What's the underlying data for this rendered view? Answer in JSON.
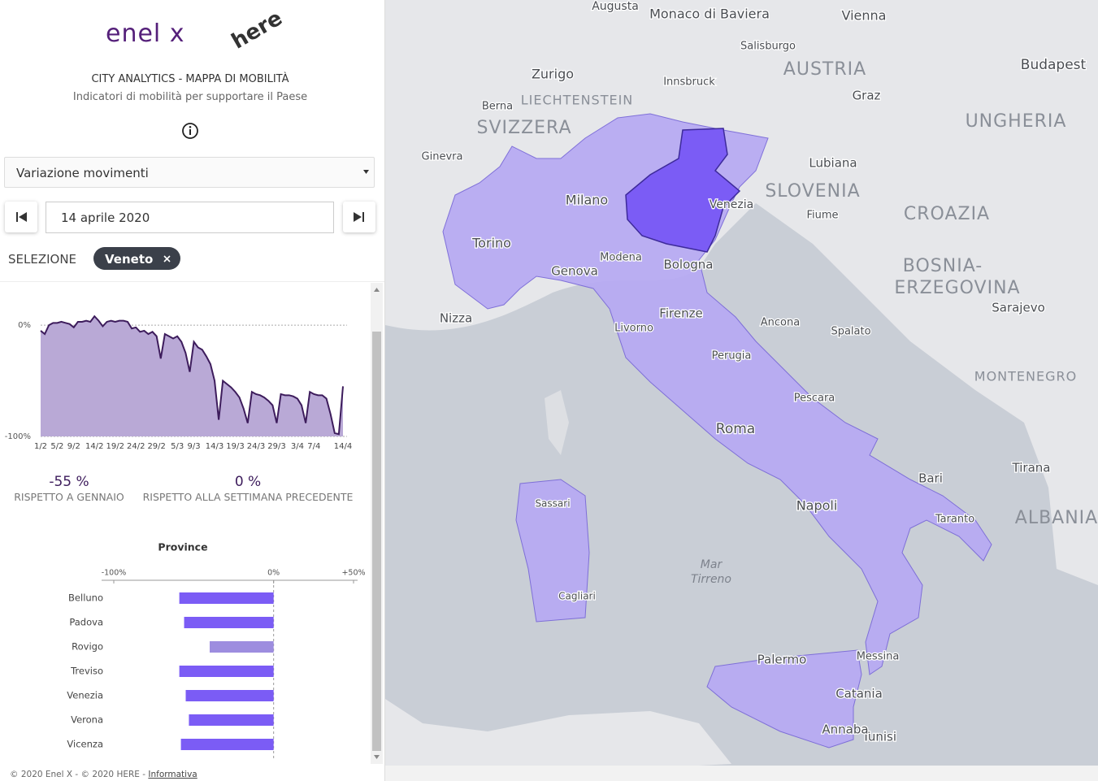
{
  "header": {
    "brand": "enel x",
    "partner": "here",
    "title": "CITY ANALYTICS - MAPPA DI MOBILITÀ",
    "subtitle": "Indicatori di mobilità per supportare il Paese"
  },
  "controls": {
    "indicator": "Variazione movimenti",
    "date": "14 aprile 2020",
    "selection_label": "SELEZIONE",
    "selection": "Veneto"
  },
  "stats": [
    {
      "value": "-55 %",
      "label": "RISPETTO A GENNAIO"
    },
    {
      "value": "0 %",
      "label": "RISPETTO ALLA SETTIMANA PRECEDENTE"
    }
  ],
  "chart_data": [
    {
      "type": "area",
      "color": "#b9a9d6",
      "line_color": "#3d1c5c",
      "categories": [
        "1/2",
        null,
        null,
        null,
        "5/2",
        null,
        null,
        null,
        "9/2",
        null,
        null,
        null,
        null,
        "14/2",
        null,
        null,
        null,
        null,
        "19/2",
        null,
        null,
        null,
        null,
        "24/2",
        null,
        null,
        null,
        null,
        "29/2",
        null,
        null,
        null,
        null,
        "5/3",
        null,
        null,
        null,
        "9/3",
        null,
        null,
        null,
        null,
        "14/3",
        null,
        null,
        null,
        null,
        "19/3",
        null,
        null,
        null,
        null,
        "24/3",
        null,
        null,
        null,
        null,
        "29/3",
        null,
        null,
        null,
        null,
        "3/4",
        null,
        null,
        null,
        "7/4",
        null,
        null,
        null,
        null,
        null,
        null,
        "14/4"
      ],
      "values": [
        -5,
        -8,
        0,
        2,
        2,
        3,
        2,
        1,
        -2,
        3,
        3,
        4,
        3,
        8,
        4,
        -1,
        3,
        4,
        3,
        4,
        4,
        3,
        -3,
        -2,
        -6,
        -5,
        -8,
        -6,
        -10,
        -30,
        -8,
        -10,
        -12,
        -10,
        -15,
        -25,
        -42,
        -15,
        -20,
        -22,
        -28,
        -35,
        -50,
        -85,
        -50,
        -53,
        -56,
        -60,
        -65,
        -75,
        -88,
        -60,
        -62,
        -63,
        -65,
        -68,
        -72,
        -88,
        -62,
        -63,
        -63,
        -64,
        -66,
        -72,
        -88,
        -60,
        -62,
        -63,
        -63,
        -66,
        -80,
        -97,
        -98,
        -55
      ],
      "ylim": [
        -100,
        30
      ],
      "yticks": [
        {
          "value": 0,
          "label": "0%"
        },
        {
          "value": -100,
          "label": "-100%"
        }
      ],
      "grid": true
    },
    {
      "type": "bar",
      "orientation": "horizontal",
      "title": "Province",
      "categories": [
        "Belluno",
        "Padova",
        "Rovigo",
        "Treviso",
        "Venezia",
        "Verona",
        "Vicenza"
      ],
      "values": [
        -59,
        -56,
        -40,
        -59,
        -55,
        -53,
        -58
      ],
      "colors": [
        "#7b5cf5",
        "#7b5cf5",
        "#9d8ddf",
        "#7b5cf5",
        "#7b5cf5",
        "#7b5cf5",
        "#7b5cf5"
      ],
      "xlim": [
        -100,
        50
      ],
      "xticks": [
        {
          "value": -100,
          "label": "-100%"
        },
        {
          "value": 0,
          "label": "0%"
        },
        {
          "value": 50,
          "label": "+50%"
        }
      ]
    }
  ],
  "map": {
    "labels": [
      "AUSTRIA",
      "SVIZZERA",
      "SLOVENIA",
      "CROAZIA",
      "UNGHERIA",
      "BOSNIA-",
      "ERZEGOVINA",
      "MONTENEGRO",
      "ALBANIA",
      "LIECHTENSTEIN",
      "Milano",
      "Torino",
      "Genova",
      "Venezia",
      "Bologna",
      "Firenze",
      "Roma",
      "Napoli",
      "Bari",
      "Palermo",
      "Catania",
      "Cagliari",
      "Sassari",
      "Pescara",
      "Ancona",
      "Perugia",
      "Zurigo",
      "Berna",
      "Ginevra",
      "Nizza",
      "Lubiana",
      "Vienna",
      "Budapest",
      "Sarajevo",
      "Tunisi",
      "Annaba",
      "Tirana",
      "Mar",
      "Tirreno",
      "Graz",
      "Salisburgo",
      "Innsbruck",
      "Spalato",
      "Fiume",
      "Augusta",
      "Monaco di Baviera",
      "Livorno",
      "Modena",
      "Taranto",
      "Messina"
    ]
  },
  "footer": {
    "text": "© 2020 Enel X - © 2020 HERE - ",
    "link": "Informativa"
  }
}
